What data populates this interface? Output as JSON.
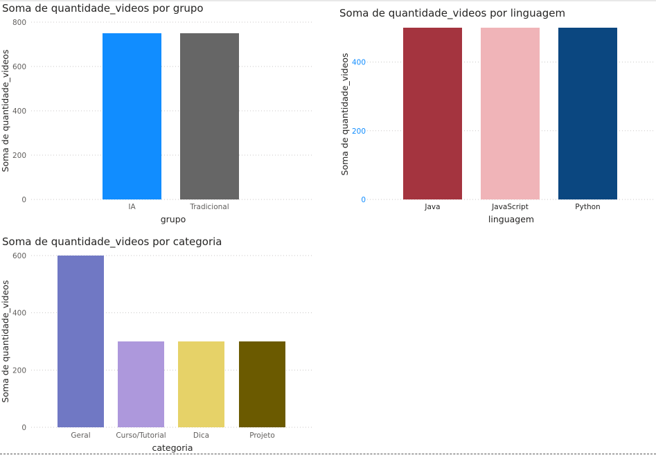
{
  "chart_data": [
    {
      "type": "bar",
      "title": "Soma de quantidade_videos por grupo",
      "xlabel": "grupo",
      "ylabel": "Soma de quantidade_videos",
      "categories": [
        "IA",
        "Tradicional"
      ],
      "values": [
        750,
        750
      ],
      "colors": [
        "#118dff",
        "#666666"
      ],
      "ylim": [
        0,
        800
      ],
      "yticks": [
        0,
        200,
        400,
        600,
        800
      ],
      "grid": true
    },
    {
      "type": "bar",
      "title": "Soma de quantidade_videos por linguagem",
      "xlabel": "linguagem",
      "ylabel": "Soma de quantidade_videos",
      "categories": [
        "Java",
        "JavaScript",
        "Python"
      ],
      "values": [
        500,
        500,
        500
      ],
      "colors": [
        "#a4343f",
        "#f0b4b8",
        "#0b4780"
      ],
      "ylim": [
        0,
        500
      ],
      "yticks": [
        0,
        200,
        400
      ],
      "grid": true
    },
    {
      "type": "bar",
      "title": "Soma de quantidade_videos por categoria",
      "xlabel": "categoria",
      "ylabel": "Soma de quantidade_videos",
      "categories": [
        "Geral",
        "Curso/Tutorial",
        "Dica",
        "Projeto"
      ],
      "values": [
        600,
        300,
        300,
        300
      ],
      "colors": [
        "#7078c4",
        "#ad98dc",
        "#e6d268",
        "#6b5a00"
      ],
      "ylim": [
        0,
        600
      ],
      "yticks": [
        0,
        200,
        400,
        600
      ],
      "grid": true
    }
  ]
}
